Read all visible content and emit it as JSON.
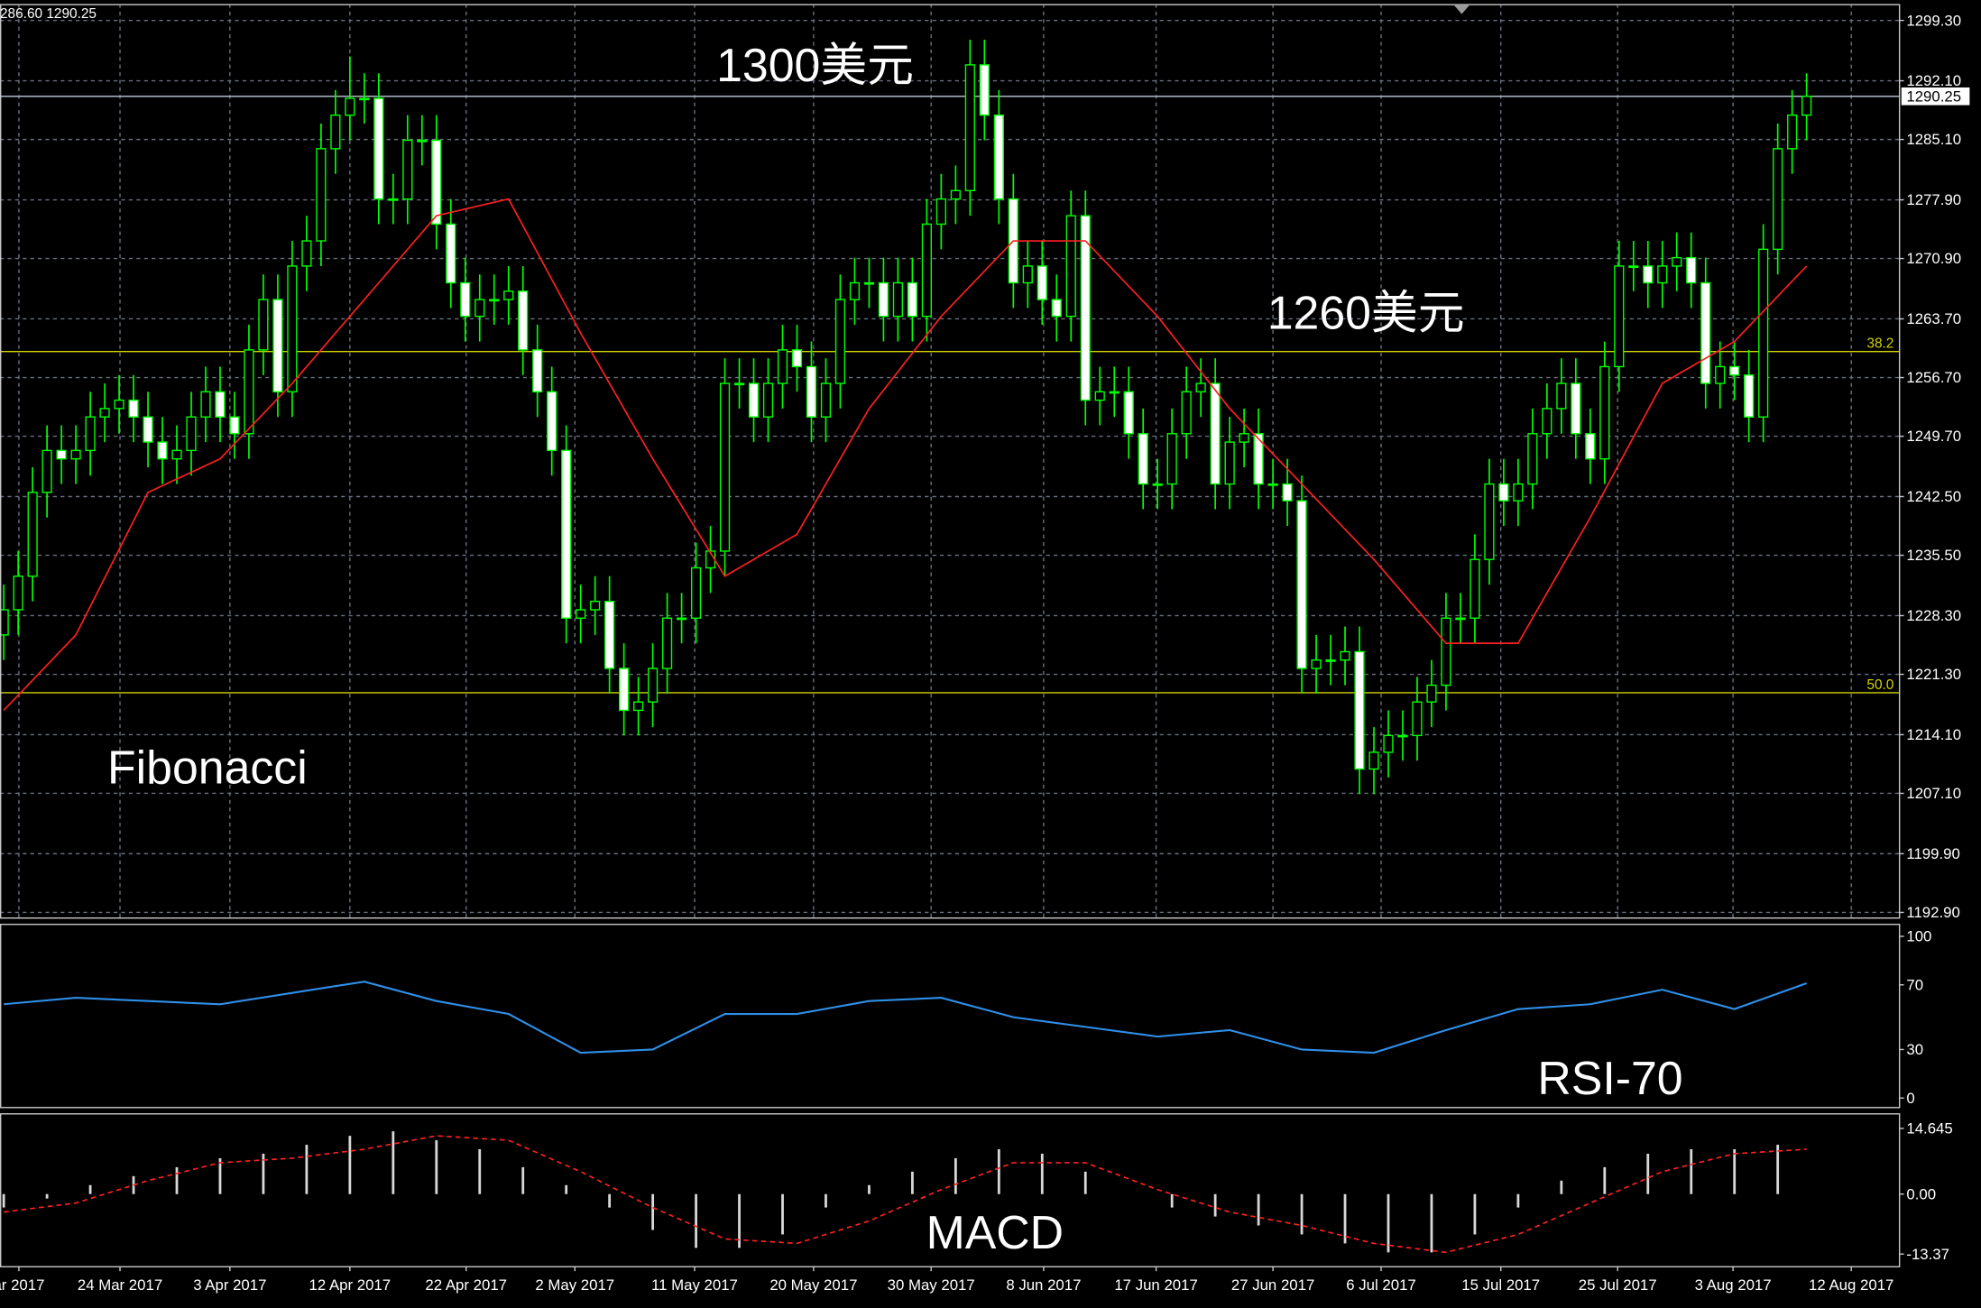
{
  "chart_data": [
    {
      "type": "candlestick",
      "info": "286.60 1290.25",
      "annotations": [
        "1300美元",
        "1260美元",
        "Fibonacci"
      ],
      "color": "#00ff00",
      "open": [
        1226,
        1229,
        1233,
        1243,
        1248,
        1247,
        1248,
        1252,
        1253,
        1254,
        1252,
        1249,
        1247,
        1248,
        1252,
        1255,
        1252,
        1250,
        1260,
        1266,
        1255,
        1270,
        1273,
        1284,
        1288,
        1290,
        1290,
        1278,
        1278,
        1285,
        1285,
        1275,
        1268,
        1264,
        1266,
        1266,
        1267,
        1260,
        1255,
        1248,
        1228,
        1229,
        1230,
        1222,
        1217,
        1218,
        1222,
        1228,
        1228,
        1234,
        1236,
        1256,
        1256,
        1252,
        1256,
        1260,
        1258,
        1252,
        1256,
        1266,
        1268,
        1268,
        1264,
        1268,
        1264,
        1275,
        1278,
        1279,
        1294,
        1288,
        1278,
        1268,
        1270,
        1266,
        1264,
        1276,
        1254,
        1255,
        1255,
        1250,
        1244,
        1244,
        1250,
        1255,
        1256,
        1244,
        1249,
        1250,
        1244,
        1244,
        1242,
        1222,
        1223,
        1223,
        1224,
        1210,
        1212,
        1214,
        1214,
        1218,
        1220,
        1228,
        1228,
        1235,
        1244,
        1242,
        1244,
        1250,
        1253,
        1256,
        1250,
        1247,
        1258,
        1270,
        1270,
        1268,
        1270,
        1271,
        1268,
        1256,
        1258,
        1257,
        1252,
        1272,
        1284,
        1288
      ],
      "high": [
        1232,
        1236,
        1246,
        1251,
        1251,
        1251,
        1255,
        1256,
        1257,
        1257,
        1255,
        1252,
        1251,
        1255,
        1258,
        1258,
        1255,
        1263,
        1269,
        1269,
        1273,
        1276,
        1287,
        1291,
        1295,
        1293,
        1293,
        1281,
        1288,
        1288,
        1288,
        1278,
        1271,
        1269,
        1269,
        1270,
        1270,
        1263,
        1258,
        1251,
        1232,
        1233,
        1233,
        1225,
        1221,
        1225,
        1231,
        1231,
        1237,
        1239,
        1259,
        1259,
        1259,
        1259,
        1263,
        1263,
        1261,
        1259,
        1269,
        1271,
        1271,
        1271,
        1271,
        1271,
        1278,
        1281,
        1282,
        1297,
        1297,
        1291,
        1281,
        1273,
        1273,
        1269,
        1279,
        1279,
        1258,
        1258,
        1258,
        1253,
        1247,
        1253,
        1258,
        1259,
        1259,
        1252,
        1253,
        1253,
        1247,
        1247,
        1245,
        1226,
        1226,
        1227,
        1227,
        1215,
        1217,
        1217,
        1221,
        1223,
        1231,
        1231,
        1238,
        1247,
        1247,
        1247,
        1253,
        1256,
        1259,
        1259,
        1253,
        1261,
        1273,
        1273,
        1273,
        1273,
        1274,
        1274,
        1271,
        1261,
        1261,
        1260,
        1275,
        1287,
        1291,
        1293
      ],
      "low": [
        1223,
        1226,
        1230,
        1240,
        1244,
        1244,
        1245,
        1249,
        1250,
        1249,
        1246,
        1244,
        1244,
        1245,
        1249,
        1249,
        1247,
        1247,
        1257,
        1252,
        1252,
        1267,
        1270,
        1281,
        1285,
        1287,
        1275,
        1275,
        1275,
        1282,
        1272,
        1265,
        1261,
        1261,
        1263,
        1263,
        1257,
        1252,
        1245,
        1225,
        1225,
        1226,
        1219,
        1214,
        1214,
        1215,
        1219,
        1225,
        1225,
        1231,
        1233,
        1253,
        1249,
        1249,
        1253,
        1255,
        1249,
        1249,
        1253,
        1263,
        1265,
        1261,
        1261,
        1261,
        1261,
        1272,
        1275,
        1276,
        1285,
        1275,
        1265,
        1265,
        1263,
        1261,
        1261,
        1251,
        1251,
        1252,
        1247,
        1241,
        1241,
        1241,
        1247,
        1252,
        1241,
        1241,
        1246,
        1241,
        1241,
        1239,
        1219,
        1219,
        1220,
        1220,
        1207,
        1207,
        1209,
        1211,
        1211,
        1215,
        1217,
        1225,
        1225,
        1232,
        1239,
        1239,
        1241,
        1247,
        1250,
        1247,
        1244,
        1244,
        1255,
        1267,
        1265,
        1265,
        1267,
        1265,
        1253,
        1253,
        1254,
        1249,
        1249,
        1269,
        1281,
        1285
      ],
      "close": [
        1229,
        1233,
        1243,
        1248,
        1247,
        1248,
        1252,
        1253,
        1254,
        1252,
        1249,
        1247,
        1248,
        1252,
        1255,
        1252,
        1250,
        1260,
        1266,
        1255,
        1270,
        1273,
        1284,
        1288,
        1290,
        1290,
        1278,
        1278,
        1285,
        1285,
        1275,
        1268,
        1264,
        1266,
        1266,
        1267,
        1260,
        1255,
        1248,
        1228,
        1229,
        1230,
        1222,
        1217,
        1218,
        1222,
        1228,
        1228,
        1234,
        1236,
        1256,
        1256,
        1252,
        1256,
        1260,
        1258,
        1252,
        1256,
        1266,
        1268,
        1268,
        1264,
        1268,
        1264,
        1275,
        1278,
        1279,
        1294,
        1288,
        1278,
        1268,
        1270,
        1266,
        1264,
        1276,
        1254,
        1255,
        1255,
        1250,
        1244,
        1244,
        1250,
        1255,
        1256,
        1244,
        1249,
        1250,
        1244,
        1244,
        1242,
        1222,
        1223,
        1223,
        1224,
        1210,
        1212,
        1214,
        1214,
        1218,
        1220,
        1228,
        1228,
        1235,
        1244,
        1242,
        1244,
        1250,
        1253,
        1256,
        1250,
        1247,
        1258,
        1270,
        1270,
        1268,
        1270,
        1271,
        1268,
        1256,
        1258,
        1257,
        1252,
        1272,
        1284,
        1288,
        1290.25
      ],
      "ma": {
        "color": "#ff2020",
        "x": [
          0,
          5,
          10,
          15,
          20,
          25,
          30,
          35,
          40,
          45,
          50,
          55,
          60,
          65,
          70,
          75,
          80,
          85,
          90,
          95,
          100,
          105,
          110,
          115,
          120,
          125
        ],
        "values": [
          1217,
          1226,
          1243,
          1247,
          1256,
          1266,
          1276,
          1278,
          1262,
          1247,
          1233,
          1238,
          1253,
          1264,
          1273,
          1273,
          1264,
          1253,
          1244,
          1235,
          1225,
          1225,
          1240,
          1256,
          1261,
          1270
        ]
      },
      "fib_levels": [
        {
          "price": 1259.8,
          "label": "38.2"
        },
        {
          "price": 1219.1,
          "label": "50.0"
        }
      ],
      "fib_color": "#d4d400",
      "last_price": 1290.25,
      "xlim": [
        -0.26,
        131.4
      ],
      "ylim": [
        1192.15,
        1301.26
      ],
      "yticks": [
        {
          "value": 1299.3,
          "label": "1299.30"
        },
        {
          "value": 1292.1,
          "label": "1292.10"
        },
        {
          "value": 1285.1,
          "label": "1285.10"
        },
        {
          "value": 1277.9,
          "label": "1277.90"
        },
        {
          "value": 1270.9,
          "label": "1270.90"
        },
        {
          "value": 1263.7,
          "label": "1263.70"
        },
        {
          "value": 1256.7,
          "label": "1256.70"
        },
        {
          "value": 1249.7,
          "label": "1249.70"
        },
        {
          "value": 1242.5,
          "label": "1242.50"
        },
        {
          "value": 1235.5,
          "label": "1235.50"
        },
        {
          "value": 1228.3,
          "label": "1228.30"
        },
        {
          "value": 1221.3,
          "label": "1221.30"
        },
        {
          "value": 1214.1,
          "label": "1214.10"
        },
        {
          "value": 1207.1,
          "label": "1207.10"
        },
        {
          "value": 1199.9,
          "label": "1199.90"
        },
        {
          "value": 1192.9,
          "label": "1192.90"
        }
      ],
      "grid": true
    },
    {
      "type": "line",
      "title": "RSI-70",
      "color": "#2f8fe8",
      "x": [
        0,
        5,
        10,
        15,
        20,
        25,
        30,
        35,
        40,
        45,
        50,
        55,
        60,
        65,
        70,
        75,
        80,
        85,
        90,
        95,
        100,
        105,
        110,
        115,
        120,
        125
      ],
      "values": [
        58,
        62,
        60,
        58,
        65,
        72,
        60,
        52,
        28,
        30,
        52,
        52,
        60,
        62,
        50,
        44,
        38,
        42,
        30,
        28,
        42,
        55,
        58,
        67,
        55,
        71
      ],
      "xlim": [
        -0.26,
        131.4
      ],
      "ylim": [
        -5.5,
        107.8
      ],
      "yticks": [
        100,
        70,
        30,
        0
      ]
    },
    {
      "type": "macd",
      "title": "MACD",
      "histogram": {
        "color": "#d8d8d8",
        "x": [
          0,
          3,
          6,
          9,
          12,
          15,
          18,
          21,
          24,
          27,
          30,
          33,
          36,
          39,
          42,
          45,
          48,
          51,
          54,
          57,
          60,
          63,
          66,
          69,
          72,
          75,
          78,
          81,
          84,
          87,
          90,
          93,
          96,
          99,
          102,
          105,
          108,
          111,
          114,
          117,
          120,
          123
        ],
        "values": [
          -3,
          -1,
          2,
          4,
          6,
          8,
          9,
          11,
          13,
          14,
          12,
          10,
          6,
          2,
          -3,
          -8,
          -12,
          -12,
          -9,
          -3,
          2,
          5,
          8,
          10,
          9,
          5,
          0,
          -3,
          -5,
          -7,
          -9,
          -11,
          -13,
          -13,
          -9,
          -3,
          3,
          6,
          9,
          10,
          10,
          11
        ]
      },
      "signal": {
        "color": "#ff2020",
        "x": [
          0,
          5,
          10,
          15,
          20,
          25,
          30,
          35,
          40,
          45,
          50,
          55,
          60,
          65,
          70,
          75,
          80,
          85,
          90,
          95,
          100,
          105,
          110,
          115,
          120,
          125
        ],
        "values": [
          -4,
          -2,
          3,
          7,
          8,
          10,
          13,
          12,
          5,
          -3,
          -10,
          -11,
          -6,
          1,
          7,
          7,
          1,
          -4,
          -7,
          -11,
          -13,
          -9,
          -2,
          5,
          9,
          10
        ]
      },
      "xlim": [
        -0.26,
        131.4
      ],
      "ylim": [
        -16.06,
        18.03
      ],
      "yticks": [
        14.645,
        {
          "value": 0,
          "label": "0.00"
        },
        -13.37
      ],
      "xticks": [
        {
          "value": 1.05,
          "label": "ar 2017"
        },
        {
          "value": 8.06,
          "label": "24 Mar 2017"
        },
        {
          "value": 15.68,
          "label": "3 Apr 2017"
        },
        {
          "value": 24.0,
          "label": "12 Apr 2017"
        },
        {
          "value": 32.06,
          "label": "22 Apr 2017"
        },
        {
          "value": 39.6,
          "label": "2 May 2017"
        },
        {
          "value": 47.9,
          "label": "11 May 2017"
        },
        {
          "value": 56.15,
          "label": "20 May 2017"
        },
        {
          "value": 64.3,
          "label": "30 May 2017"
        },
        {
          "value": 72.1,
          "label": "8 Jun 2017"
        },
        {
          "value": 79.9,
          "label": "17 Jun 2017"
        },
        {
          "value": 88.0,
          "label": "27 Jun 2017"
        },
        {
          "value": 95.5,
          "label": "6 Jul 2017"
        },
        {
          "value": 103.8,
          "label": "15 Jul 2017"
        },
        {
          "value": 111.9,
          "label": "25 Jul 2017"
        },
        {
          "value": 119.9,
          "label": "3 Aug 2017"
        },
        {
          "value": 128.1,
          "label": "12 Aug 2017"
        }
      ]
    }
  ]
}
